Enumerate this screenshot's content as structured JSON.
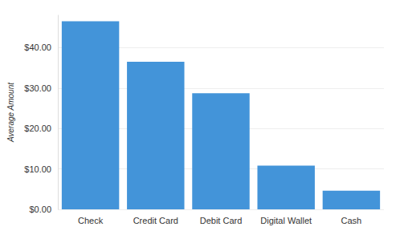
{
  "chart_data": {
    "type": "bar",
    "y_label": "Average Amount",
    "categories": [
      "Check",
      "Credit Card",
      "Debit Card",
      "Digital Wallet",
      "Cash"
    ],
    "values": [
      46.5,
      36.5,
      28.7,
      10.8,
      4.6
    ],
    "color": "#4394d9",
    "ylim": [
      0,
      48
    ],
    "yticks": [
      {
        "value": 0,
        "label": "$0.00"
      },
      {
        "value": 10,
        "label": "$10.00"
      },
      {
        "value": 20,
        "label": "$20.00"
      },
      {
        "value": 30,
        "label": "$30.00"
      },
      {
        "value": 40,
        "label": "$40.00"
      }
    ],
    "grid": true
  }
}
